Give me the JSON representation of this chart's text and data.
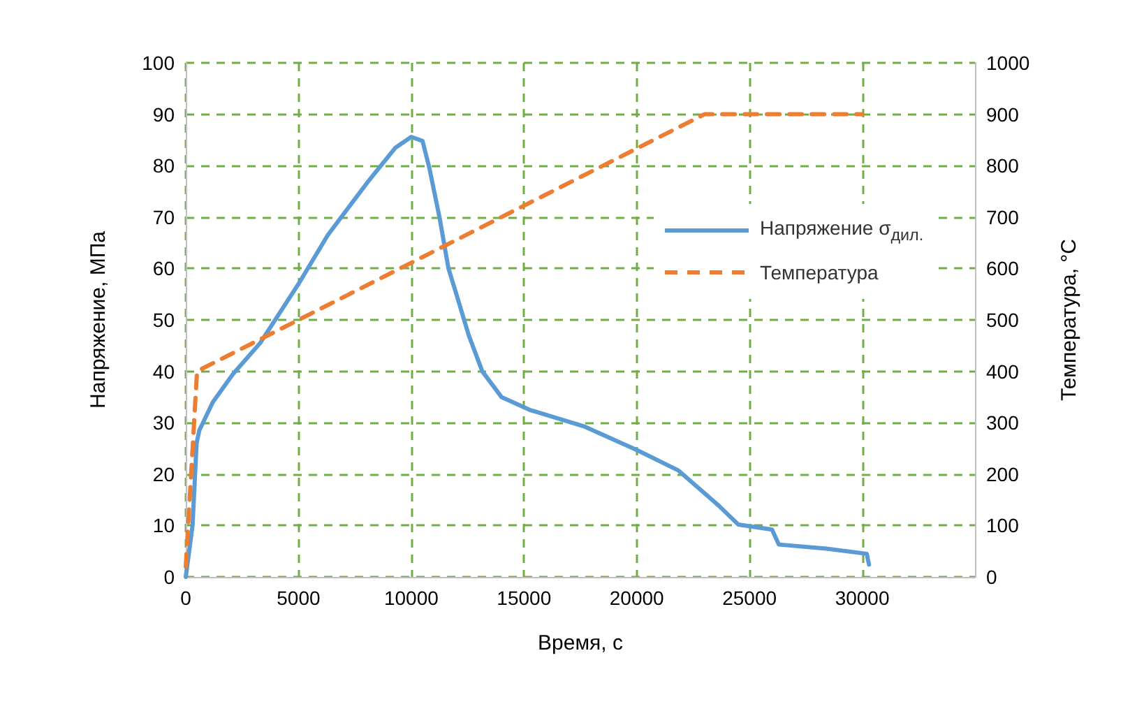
{
  "chart_data": {
    "type": "line",
    "xlabel": "Время, с",
    "ylabel": "Напряжение, МПа",
    "y2label": "Температура, °C",
    "xlim": [
      0,
      35000
    ],
    "xticks": [
      0,
      5000,
      10000,
      15000,
      20000,
      25000,
      30000
    ],
    "ylim": [
      0,
      100
    ],
    "yticks": [
      0,
      10,
      20,
      30,
      40,
      50,
      60,
      70,
      80,
      90,
      100
    ],
    "y2lim": [
      0,
      1000
    ],
    "y2ticks": [
      0,
      100,
      200,
      300,
      400,
      500,
      600,
      700,
      800,
      900,
      1000
    ],
    "grid": true,
    "legend": "top right",
    "marker": "none",
    "series": [
      {
        "name": "Напряжение σ$_{дил.}$",
        "color": "#5b9bd5",
        "line_style": "solid",
        "x": [
          0,
          300,
          480,
          600,
          1200,
          2100,
          3300,
          5000,
          6300,
          8100,
          9300,
          10000,
          10500,
          10800,
          11250,
          11650,
          12000,
          12550,
          13150,
          14000,
          15250,
          17650,
          20050,
          21850,
          23600,
          24500,
          26000,
          26300,
          28400,
          30200,
          30300
        ],
        "values": [
          0,
          10,
          26,
          28.5,
          34,
          39.5,
          45.5,
          57,
          66.5,
          77,
          83.5,
          85.6,
          84.8,
          79.6,
          70,
          60,
          55,
          47,
          40,
          35,
          32.5,
          29.3,
          24.6,
          20.7,
          14,
          10.2,
          9.2,
          6.3,
          5.5,
          4.5,
          2.4
        ]
      },
      {
        "name": "Температура",
        "color": "#ed7d31",
        "line_style": "dashed",
        "axis": "y2",
        "x": [
          0,
          500,
          23000,
          30000
        ],
        "values": [
          20,
          400,
          900,
          900
        ]
      }
    ]
  }
}
